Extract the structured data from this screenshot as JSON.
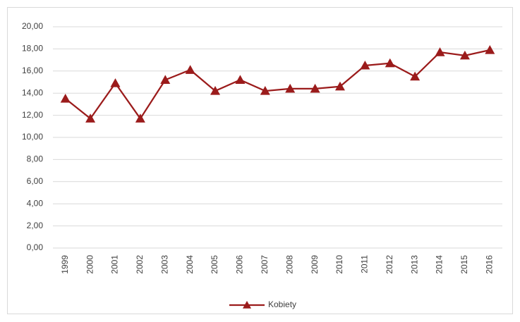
{
  "chart_data": {
    "type": "line",
    "categories": [
      "1999",
      "2000",
      "2001",
      "2002",
      "2003",
      "2004",
      "2005",
      "2006",
      "2007",
      "2008",
      "2009",
      "2010",
      "2011",
      "2012",
      "2013",
      "2014",
      "2015",
      "2016"
    ],
    "series": [
      {
        "name": "Kobiety",
        "color": "#9b1b1b",
        "values": [
          13.5,
          11.7,
          14.9,
          11.7,
          15.2,
          16.1,
          14.2,
          15.2,
          14.2,
          14.4,
          14.4,
          14.6,
          16.5,
          16.7,
          15.5,
          17.7,
          17.4,
          17.9
        ]
      }
    ],
    "ylim": [
      0,
      20
    ],
    "yticks": [
      {
        "value": 0,
        "label": "0,00"
      },
      {
        "value": 2,
        "label": "2,00"
      },
      {
        "value": 4,
        "label": "4,00"
      },
      {
        "value": 6,
        "label": "6,00"
      },
      {
        "value": 8,
        "label": "8,00"
      },
      {
        "value": 10,
        "label": "10,00"
      },
      {
        "value": 12,
        "label": "12,00"
      },
      {
        "value": 14,
        "label": "14,00"
      },
      {
        "value": 16,
        "label": "16,00"
      },
      {
        "value": 18,
        "label": "18,00"
      },
      {
        "value": 20,
        "label": "20,00"
      }
    ],
    "grid": true,
    "legend": "bottom"
  }
}
